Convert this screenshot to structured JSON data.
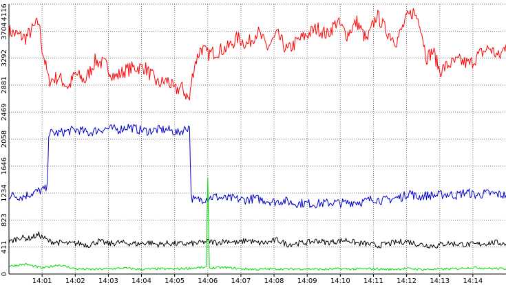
{
  "chart_data": {
    "type": "line",
    "title": "",
    "xlabel": "",
    "ylabel": "",
    "ylim": [
      0,
      4116
    ],
    "y_ticks": [
      0,
      411,
      823,
      1234,
      1646,
      2058,
      2469,
      2881,
      3292,
      3704,
      4116
    ],
    "x_ticks": [
      "14:01",
      "14:02",
      "14:03",
      "14:04",
      "14:05",
      "14:06",
      "14:07",
      "14:08",
      "14:09",
      "14:10",
      "14:11",
      "14:12",
      "14:13",
      "14:14"
    ],
    "x_range_minutes": [
      0,
      15
    ],
    "x_tick_positions_minutes": [
      1,
      2,
      3,
      4,
      5,
      6,
      7,
      8,
      9,
      10,
      11,
      12,
      13,
      14
    ],
    "grid": true,
    "legend": "none",
    "series": [
      {
        "color": "#ff0000",
        "x": [
          0,
          0.5,
          0.9,
          1.0,
          1.2,
          1.5,
          1.8,
          2.0,
          2.3,
          2.6,
          2.9,
          3.2,
          3.5,
          3.8,
          4.1,
          4.5,
          4.8,
          5.0,
          5.2,
          5.45,
          5.5,
          5.6,
          5.8,
          6.0,
          6.3,
          6.6,
          6.9,
          7.2,
          7.5,
          7.8,
          8.1,
          8.4,
          8.7,
          9.0,
          9.3,
          9.6,
          9.9,
          10.2,
          10.5,
          10.8,
          11.1,
          11.4,
          11.7,
          12.0,
          12.2,
          12.4,
          12.6,
          12.8,
          13.0,
          13.3,
          13.6,
          13.9,
          14.2,
          14.5,
          14.8,
          15.0
        ],
        "values": [
          3700,
          3600,
          3850,
          3450,
          2950,
          3000,
          2850,
          3050,
          2950,
          3250,
          3200,
          3000,
          3100,
          3150,
          3150,
          2900,
          2950,
          2800,
          2850,
          2650,
          2900,
          3200,
          3450,
          3350,
          3400,
          3450,
          3600,
          3500,
          3700,
          3450,
          3650,
          3400,
          3550,
          3650,
          3750,
          3650,
          3850,
          3650,
          3850,
          3550,
          3950,
          3700,
          3550,
          3900,
          4000,
          3850,
          3300,
          3400,
          3100,
          3200,
          3250,
          3200,
          3350,
          3450,
          3300,
          3500
        ]
      },
      {
        "color": "#0000cc",
        "x": [
          0,
          0.4,
          0.8,
          1.15,
          1.2,
          1.5,
          1.8,
          2.1,
          2.4,
          2.7,
          3.0,
          3.3,
          3.6,
          3.9,
          4.2,
          4.5,
          4.8,
          5.1,
          5.45,
          5.5,
          5.6,
          5.9,
          6.2,
          6.5,
          6.8,
          7.1,
          7.4,
          7.7,
          8.0,
          8.3,
          8.6,
          8.9,
          9.2,
          9.5,
          9.8,
          10.1,
          10.4,
          10.7,
          11.0,
          11.3,
          11.6,
          11.9,
          12.1,
          12.3,
          12.6,
          12.9,
          13.2,
          13.5,
          13.8,
          14.1,
          14.4,
          14.7,
          15.0
        ],
        "values": [
          1200,
          1180,
          1250,
          1300,
          2150,
          2150,
          2180,
          2200,
          2150,
          2200,
          2220,
          2200,
          2250,
          2200,
          2180,
          2200,
          2200,
          2150,
          2250,
          1180,
          1120,
          1150,
          1180,
          1150,
          1150,
          1130,
          1150,
          1130,
          1100,
          1120,
          1080,
          1080,
          1070,
          1080,
          1090,
          1080,
          1100,
          1100,
          1150,
          1120,
          1150,
          1180,
          1250,
          1170,
          1200,
          1200,
          1220,
          1200,
          1250,
          1200,
          1230,
          1220,
          1200
        ]
      },
      {
        "color": "#000000",
        "x": [
          0,
          0.3,
          0.6,
          0.9,
          1.2,
          1.5,
          1.8,
          2.1,
          2.4,
          2.7,
          3.0,
          3.3,
          3.6,
          3.9,
          4.2,
          4.5,
          4.8,
          5.1,
          5.4,
          5.7,
          6.0,
          6.3,
          6.6,
          6.9,
          7.2,
          7.5,
          7.8,
          8.1,
          8.4,
          8.7,
          9.0,
          9.3,
          9.6,
          9.9,
          10.2,
          10.5,
          10.8,
          11.1,
          11.4,
          11.7,
          12.0,
          12.3,
          12.6,
          12.9,
          13.2,
          13.5,
          13.8,
          14.1,
          14.4,
          14.7,
          15.0
        ],
        "values": [
          480,
          560,
          540,
          600,
          500,
          480,
          460,
          470,
          440,
          500,
          460,
          480,
          470,
          460,
          480,
          450,
          470,
          460,
          460,
          470,
          500,
          480,
          510,
          470,
          520,
          470,
          480,
          520,
          450,
          470,
          480,
          510,
          480,
          500,
          520,
          470,
          460,
          430,
          460,
          480,
          500,
          460,
          440,
          430,
          470,
          460,
          450,
          450,
          470,
          480,
          460
        ]
      },
      {
        "color": "#00dd00",
        "x": [
          0,
          0.5,
          1.0,
          1.5,
          2.0,
          2.5,
          3.0,
          3.5,
          4.0,
          4.5,
          5.0,
          5.5,
          5.95,
          6.0,
          6.05,
          6.5,
          7.0,
          7.5,
          8.0,
          8.5,
          9.0,
          9.5,
          10.0,
          10.5,
          11.0,
          11.5,
          12.0,
          12.5,
          13.0,
          13.5,
          14.0,
          14.5,
          15.0
        ],
        "values": [
          120,
          150,
          90,
          140,
          80,
          70,
          80,
          90,
          70,
          80,
          75,
          90,
          100,
          1450,
          90,
          100,
          80,
          70,
          80,
          75,
          80,
          70,
          80,
          75,
          80,
          70,
          85,
          70,
          75,
          80,
          100,
          85,
          80
        ]
      }
    ]
  }
}
